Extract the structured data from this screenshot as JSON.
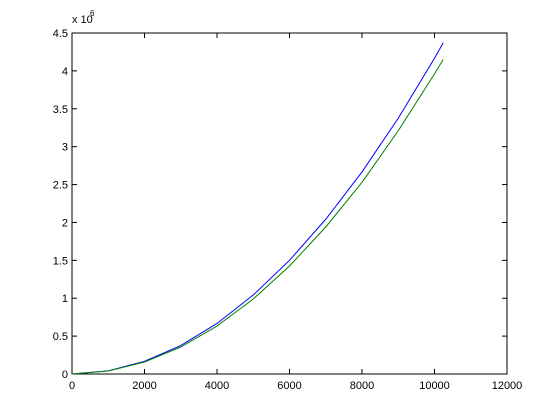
{
  "chart_data": {
    "type": "line",
    "y_scale_label": "x 10",
    "y_scale_exponent": "6",
    "x": [
      0,
      1000,
      2000,
      3000,
      4000,
      5000,
      6000,
      7000,
      8000,
      9000,
      10000,
      10240
    ],
    "series": [
      {
        "color": "#0000ff",
        "values": [
          0,
          0.042,
          0.167,
          0.375,
          0.667,
          1.042,
          1.5,
          2.042,
          2.667,
          3.375,
          4.167,
          4.37
        ]
      },
      {
        "color": "#008000",
        "values": [
          0,
          0.04,
          0.158,
          0.356,
          0.633,
          0.99,
          1.425,
          1.94,
          2.53,
          3.21,
          3.96,
          4.15
        ]
      }
    ],
    "xlim": [
      0,
      12000
    ],
    "xticks": [
      0,
      2000,
      4000,
      6000,
      8000,
      10000,
      12000
    ],
    "ylim": [
      0,
      4.5
    ],
    "yticks": [
      0,
      0.5,
      1,
      1.5,
      2,
      2.5,
      3,
      3.5,
      4,
      4.5
    ],
    "grid": false
  }
}
